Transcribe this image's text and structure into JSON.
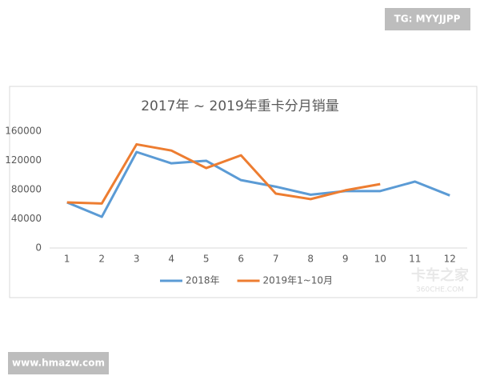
{
  "chart_data": {
    "type": "line",
    "title": "2017年 ~ 2019年重卡分月销量",
    "categories": [
      "1",
      "2",
      "3",
      "4",
      "5",
      "6",
      "7",
      "8",
      "9",
      "10",
      "11",
      "12"
    ],
    "series": [
      {
        "name": "2018年",
        "color": "#5b9bd5",
        "values": [
          62500,
          42700,
          131500,
          116000,
          119500,
          93000,
          84000,
          73000,
          78000,
          78000,
          91000,
          72000
        ]
      },
      {
        "name": "2019年1~10月",
        "color": "#ed7d31",
        "values": [
          62500,
          61000,
          142000,
          133500,
          109500,
          127000,
          74500,
          67000,
          79000,
          87500,
          null,
          null
        ]
      }
    ],
    "ylim": [
      0,
      160000
    ],
    "yticks": [
      0,
      40000,
      80000,
      120000,
      160000
    ],
    "grid": false,
    "legend": "bottom"
  },
  "watermarks": {
    "top": "TG: MYYJJPP",
    "bottom": "www.hmazw.com",
    "logo": "卡车之家",
    "logo_sub": "360CHE.COM"
  }
}
